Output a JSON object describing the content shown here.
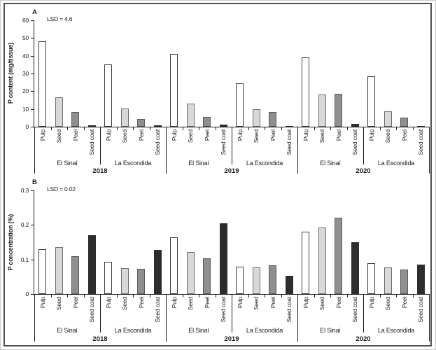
{
  "figure": {
    "panel_a_letter": "A",
    "panel_b_letter": "B"
  },
  "chart_data": [
    {
      "type": "bar",
      "panel": "A",
      "panel_letter": "A",
      "lsd_label": "LSD = 4.6",
      "ylabel": "P content (mg/tissue)",
      "ylim": [
        0,
        60
      ],
      "ytick_labels": [
        "0",
        "10",
        "20",
        "30",
        "40",
        "50",
        "60"
      ],
      "categories": [
        "Pulp",
        "Seed",
        "Peel",
        "Seed coat"
      ],
      "legend_position": "none",
      "grid": false,
      "groups": [
        {
          "year": "2018",
          "location": "El Sinaí",
          "values": [
            48,
            16.5,
            8.3,
            0.8
          ]
        },
        {
          "year": "2018",
          "location": "La Escondida",
          "values": [
            35,
            10.3,
            4.5,
            0.6
          ]
        },
        {
          "year": "2019",
          "location": "El Sinaí",
          "values": [
            41,
            13,
            5.5,
            1.0
          ]
        },
        {
          "year": "2019",
          "location": "La Escondida",
          "values": [
            24.5,
            9.7,
            8.4,
            0.5
          ]
        },
        {
          "year": "2020",
          "location": "El Sinaí",
          "values": [
            39,
            18.3,
            18.6,
            1.5
          ]
        },
        {
          "year": "2020",
          "location": "La Escondida",
          "values": [
            28.5,
            8.8,
            5.2,
            0.5
          ]
        }
      ],
      "bar_fills": [
        "#ffffff",
        "#d8d8d8",
        "#8f8f8f",
        "#2d2d2d"
      ],
      "bar_borders": [
        "#3d3d3d",
        "#6e6e6e",
        "#5a5a5a",
        "#2d2d2d"
      ]
    },
    {
      "type": "bar",
      "panel": "B",
      "panel_letter": "B",
      "lsd_label": "LSD = 0.02",
      "ylabel": "P concentration (%)",
      "ylim": [
        0,
        0.3
      ],
      "ytick_labels": [
        "0",
        "0.1",
        "0.2",
        "0.3"
      ],
      "categories": [
        "Pulp",
        "Seed",
        "Peel",
        "Seed coat"
      ],
      "legend_position": "none",
      "grid": false,
      "groups": [
        {
          "year": "2018",
          "location": "El Sinaí",
          "values": [
            0.13,
            0.136,
            0.11,
            0.17
          ]
        },
        {
          "year": "2018",
          "location": "La Escondida",
          "values": [
            0.094,
            0.075,
            0.072,
            0.127
          ]
        },
        {
          "year": "2019",
          "location": "El Sinaí",
          "values": [
            0.165,
            0.122,
            0.104,
            0.205
          ]
        },
        {
          "year": "2019",
          "location": "La Escondida",
          "values": [
            0.08,
            0.077,
            0.084,
            0.052
          ]
        },
        {
          "year": "2020",
          "location": "El Sinaí",
          "values": [
            0.18,
            0.193,
            0.22,
            0.15
          ]
        },
        {
          "year": "2020",
          "location": "La Escondida",
          "values": [
            0.09,
            0.078,
            0.071,
            0.085
          ]
        }
      ],
      "bar_fills": [
        "#ffffff",
        "#d8d8d8",
        "#8f8f8f",
        "#2d2d2d"
      ],
      "bar_borders": [
        "#3d3d3d",
        "#6e6e6e",
        "#5a5a5a",
        "#2d2d2d"
      ]
    }
  ]
}
